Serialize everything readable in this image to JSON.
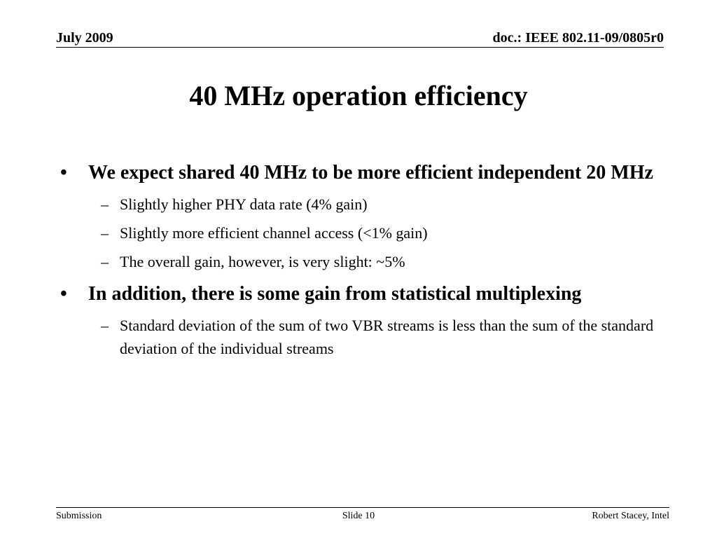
{
  "header": {
    "date": "July 2009",
    "doc": "doc.: IEEE 802.11-09/0805r0"
  },
  "title": "40 MHz operation efficiency",
  "bullets": [
    {
      "text": "We expect shared 40 MHz to be more efficient independent 20 MHz",
      "subs": [
        "Slightly higher PHY data rate (4% gain)",
        "Slightly more efficient channel access (<1% gain)",
        "The overall gain, however, is very slight: ~5%"
      ]
    },
    {
      "text": "In addition, there is some gain from statistical multiplexing",
      "subs": [
        "Standard deviation of the sum of two VBR streams is less than the sum of the standard deviation of the individual streams"
      ]
    }
  ],
  "marks": {
    "bullet": "•",
    "dash": "–"
  },
  "footer": {
    "left": "Submission",
    "center": "Slide 10",
    "right": "Robert Stacey, Intel"
  }
}
